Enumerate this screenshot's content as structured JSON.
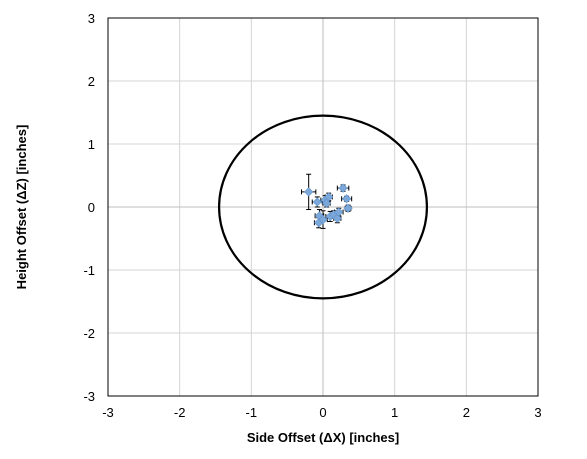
{
  "chart_data": {
    "type": "scatter",
    "title": "",
    "xlabel": "Side Offset (ΔX) [inches]",
    "ylabel": "Height Offset (ΔZ) [inches]",
    "xlim": [
      -3,
      3
    ],
    "ylim": [
      -3,
      3
    ],
    "xticks": [
      -3,
      -2,
      -1,
      0,
      1,
      2,
      3
    ],
    "yticks": [
      -3,
      -2,
      -1,
      0,
      1,
      2,
      3
    ],
    "x_tick_labels": [
      "-3",
      "-2",
      "-1",
      "0",
      "1",
      "2",
      "3"
    ],
    "y_tick_labels": [
      "-3",
      "-2",
      "-1",
      "0",
      "1",
      "2",
      "3"
    ],
    "grid": true,
    "legend": "none",
    "circle": {
      "center": [
        0,
        0
      ],
      "radius": 1.45,
      "color": "#000000"
    },
    "marker_color": "#7ba7d9",
    "errorbar_color": "#000000",
    "points": [
      {
        "x": -0.2,
        "y": 0.24,
        "xerr": 0.1,
        "yerr": 0.28
      },
      {
        "x": -0.08,
        "y": 0.08,
        "xerr": 0.07,
        "yerr": 0.08
      },
      {
        "x": -0.05,
        "y": -0.14,
        "xerr": 0.06,
        "yerr": 0.1
      },
      {
        "x": -0.06,
        "y": -0.25,
        "xerr": 0.06,
        "yerr": 0.08
      },
      {
        "x": 0.0,
        "y": -0.2,
        "xerr": 0.06,
        "yerr": 0.14
      },
      {
        "x": 0.03,
        "y": 0.11,
        "xerr": 0.06,
        "yerr": 0.07
      },
      {
        "x": 0.05,
        "y": 0.06,
        "xerr": 0.05,
        "yerr": 0.06
      },
      {
        "x": 0.08,
        "y": 0.16,
        "xerr": 0.05,
        "yerr": 0.06
      },
      {
        "x": 0.1,
        "y": -0.15,
        "xerr": 0.06,
        "yerr": 0.08
      },
      {
        "x": 0.15,
        "y": -0.12,
        "xerr": 0.05,
        "yerr": 0.06
      },
      {
        "x": 0.2,
        "y": -0.18,
        "xerr": 0.05,
        "yerr": 0.07
      },
      {
        "x": 0.22,
        "y": -0.08,
        "xerr": 0.06,
        "yerr": 0.06
      },
      {
        "x": 0.28,
        "y": 0.3,
        "xerr": 0.08,
        "yerr": 0.05
      },
      {
        "x": 0.33,
        "y": 0.13,
        "xerr": 0.07,
        "yerr": 0.04
      },
      {
        "x": 0.35,
        "y": -0.02,
        "xerr": 0.04,
        "yerr": 0.05
      }
    ]
  }
}
